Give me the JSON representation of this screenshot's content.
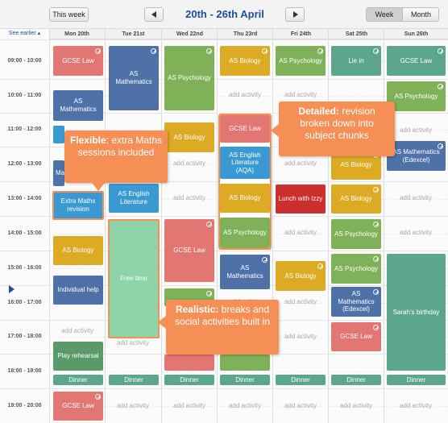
{
  "header": {
    "this_week_label": "This week",
    "date_range": "20th - 26th April",
    "view_week": "Week",
    "view_month": "Month",
    "see_earlier": "See earlier"
  },
  "days": [
    "Mon 20th",
    "Tue 21st",
    "Wed 22nd",
    "Thu 23rd",
    "Fri 24th",
    "Sat 25th",
    "Sun 26th"
  ],
  "times": [
    "09:00 - 10:00",
    "10:00 - 11:00",
    "11:00 - 12:00",
    "12:00 - 13:00",
    "13:00 - 14:00",
    "14:00 - 15:00",
    "15:00 - 16:00",
    "16:00 - 17:00",
    "17:00 - 18:00",
    "18:00 - 19:00",
    "19:00 - 20:00"
  ],
  "add_activity": "add activity",
  "events": {
    "mon_gcse_law": "GCSE Law",
    "mon_as_maths": "AS Mathematics",
    "mon_ma": "Ma",
    "mon_extra_maths": "Extra Maths revision",
    "mon_as_biology": "AS Biology",
    "mon_individual_help": "Individual help",
    "mon_play_rehearsal": "Play rehearsal",
    "mon_dinner": "Dinner",
    "mon_gcse_law_eve": "GCSE Law",
    "tue_as_maths": "AS Mathematics",
    "tue_as_english": "AS English Literature",
    "tue_free_time": "Free time",
    "tue_dinner": "Dinner",
    "wed_as_psychology": "AS Psychology",
    "wed_as_biology": "AS Biology",
    "wed_gcse_law": "GCSE Law",
    "wed_dinner": "Dinner",
    "thu_as_biology": "AS Biology",
    "thu_gcse_law": "GCSE Law",
    "thu_as_english": "AS English Literature (AQA)",
    "thu_as_biology2": "AS Biology",
    "thu_as_psychology": "AS Psychology",
    "thu_as_maths": "AS Mathematics",
    "thu_dinner": "Dinner",
    "fri_as_psychology": "AS Psychology",
    "fri_lunch": "Lunch with Izzy",
    "fri_as_biology": "AS Biology",
    "fri_as_maths": "AS Mathematics",
    "fri_dinner": "Dinner",
    "sat_lie_in": "Lie in",
    "sat_as_biology": "AS Biology",
    "sat_as_biology2": "AS Biology",
    "sat_as_psychology": "AS Psychology",
    "sat_as_psychology2": "AS Psychology",
    "sat_as_maths": "AS Mathematics (Edexcel)",
    "sat_gcse_law": "GCSE Law",
    "sat_dinner": "Dinner",
    "sun_gcse_law": "GCSE Law",
    "sun_as_psychology": "AS Psychology",
    "sun_as_maths": "AS Mathematics (Edexcel)",
    "sun_sarah": "Sarah's birthday",
    "sun_dinner": "Dinner"
  },
  "callouts": {
    "flexible_title": "Flexible",
    "flexible_text": ": extra Maths sessions included",
    "detailed_title": "Detailed:",
    "detailed_text": " revision broken down into subject chunks",
    "realistic_title": "Realistic:",
    "realistic_text": " breaks and social activities built in"
  },
  "colors": {
    "accent_blue": "#1c4fa0",
    "callout_orange": "#f58f55",
    "red": "#e27673",
    "blue": "#4e71a8",
    "green": "#7fb159",
    "yellow": "#dcab23",
    "teal": "#5ca78b",
    "mint": "#8fd4a8"
  }
}
